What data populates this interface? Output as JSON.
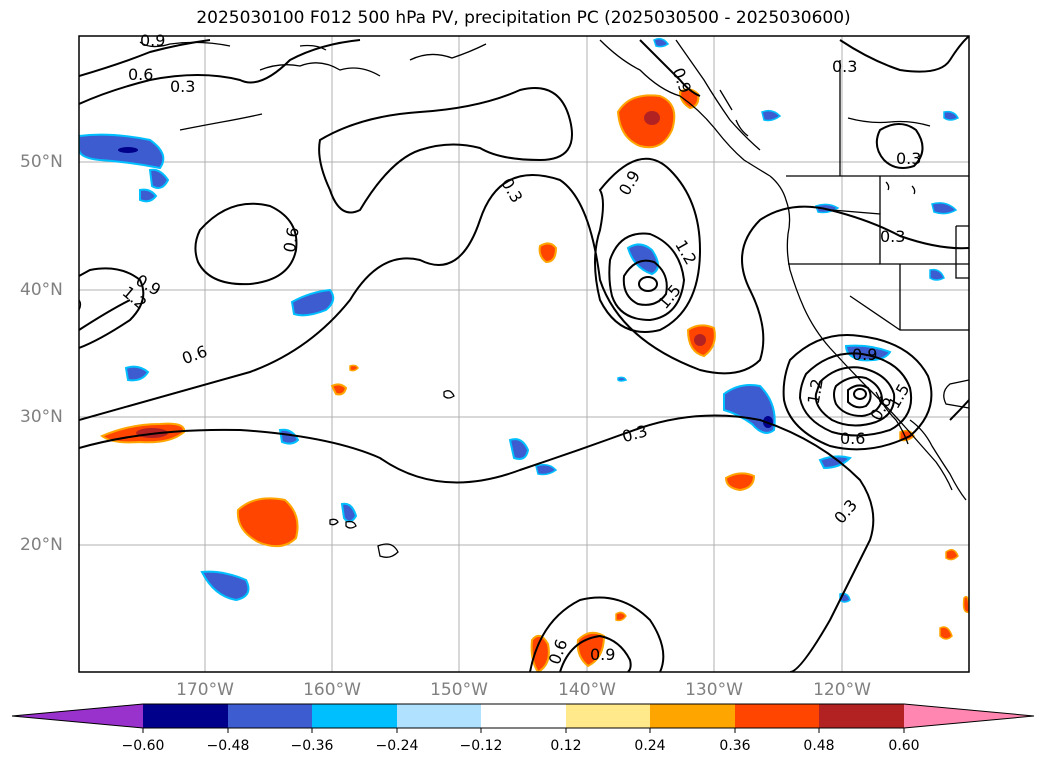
{
  "title": "2025030100 F012 500 hPa PV, precipitation PC (2025030500 - 2025030600)",
  "lat_ticks": [
    "50°N",
    "40°N",
    "30°N",
    "20°N"
  ],
  "lon_ticks": [
    "170°W",
    "160°W",
    "150°W",
    "140°W",
    "130°W",
    "120°W"
  ],
  "contour_labels": [
    "0.9",
    "0.6",
    "0.3",
    "0.3",
    "0.3",
    "0.6",
    "0.9",
    "1.2",
    "0.6",
    "0.9",
    "1.2",
    "1.5",
    "0.3",
    "0.9",
    "1.2",
    "1.5",
    "0.6",
    "0.3",
    "0.6",
    "0.9",
    "0.3",
    "0.3",
    "0.9",
    "0.6"
  ],
  "colorbar": {
    "colors": [
      "#9932cc",
      "#00008b",
      "#3c5cd0",
      "#00bfff",
      "#b0e2ff",
      "#ffffff",
      "#ffe98a",
      "#ffa500",
      "#ff4500",
      "#b22222",
      "#ff86b0"
    ],
    "labels": [
      "−0.60",
      "−0.48",
      "−0.36",
      "−0.24",
      "−0.12",
      "0.12",
      "0.24",
      "0.36",
      "0.48",
      "0.60"
    ]
  }
}
